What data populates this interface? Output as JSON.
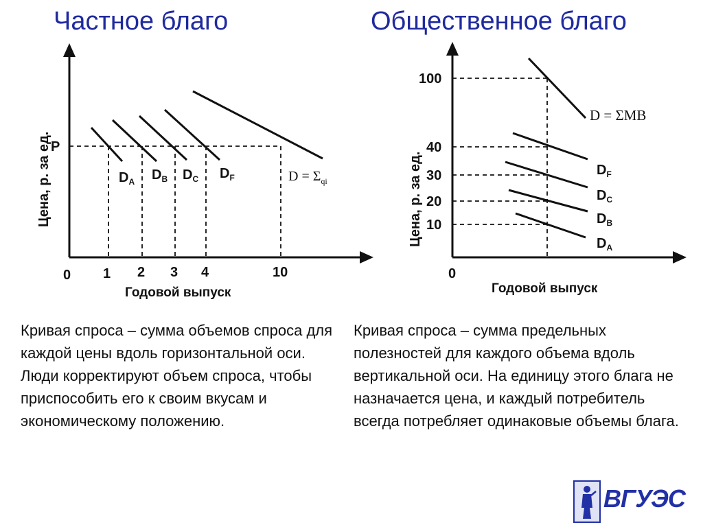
{
  "titles": {
    "left": "Частное благо",
    "right": "Общественное благо"
  },
  "left_graph": {
    "ylabel": "Цена, р. за ед.",
    "xlabel": "Годовой выпуск",
    "price_label": "P",
    "origin": "0",
    "x_ticks": [
      "1",
      "2",
      "3",
      "4",
      "10"
    ],
    "curve_labels": {
      "a_main": "D",
      "a_sub": "A",
      "b_main": "D",
      "b_sub": "B",
      "c_main": "D",
      "c_sub": "C",
      "f_main": "D",
      "f_sub": "F",
      "sum_main": "D = Σ",
      "sum_sub": "qi"
    }
  },
  "right_graph": {
    "ylabel": "Цена, р. за ед.",
    "xlabel": "Годовой выпуск",
    "origin": "0",
    "y_ticks": [
      "100",
      "40",
      "30",
      "20",
      "10"
    ],
    "curve_labels": {
      "sum": "D = ΣMB",
      "f_main": "D",
      "f_sub": "F",
      "c_main": "D",
      "c_sub": "C",
      "b_main": "D",
      "b_sub": "B",
      "a_main": "D",
      "a_sub": "A"
    }
  },
  "descriptions": {
    "left_p1": "Кривая спроса – сумма объемов спроса для каждой цены вдоль горизонтальной оси.",
    "left_p2": "Люди корректируют объем спроса, чтобы приспособить его к своим вкусам и экономическому положению.",
    "right": "Кривая спроса – сумма  предельных полезностей для каждого объема вдоль вертикальной оси. На единицу этого блага не назначается цена, и каждый потребитель всегда потребляет одинаковые объемы блага."
  },
  "logo": {
    "text": "ВГУЭС"
  }
}
